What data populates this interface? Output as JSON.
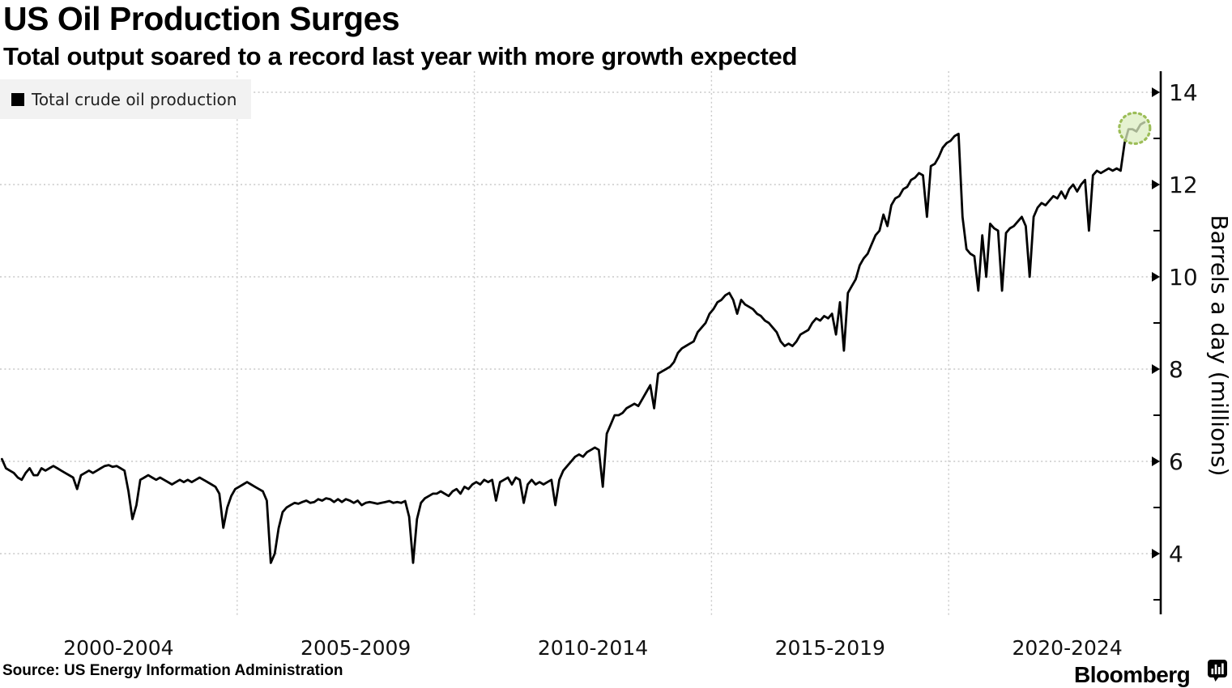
{
  "header": {
    "title": "US Oil Production Surges",
    "subtitle": "Total output soared to a record last year with more growth expected"
  },
  "legend": {
    "label": "Total crude oil production",
    "swatch_color": "#000000"
  },
  "chart_data": {
    "type": "line",
    "title": "US Oil Production Surges",
    "subtitle": "Total output soared to a record last year with more growth expected",
    "ylabel": "Barrels a day (millions)",
    "yticks": [
      14,
      12,
      10,
      8,
      6,
      4
    ],
    "yticks_minor": [
      13,
      11,
      9,
      7,
      5,
      3
    ],
    "ylim": [
      2.6,
      14.45
    ],
    "xlim": [
      2000,
      2025
    ],
    "xtick_labels": [
      "2000-2004",
      "2005-2009",
      "2010-2014",
      "2015-2019",
      "2020-2024"
    ],
    "grid": "dashed",
    "legend_position": "top-left",
    "line_color": "#000000",
    "series": [
      {
        "name": "Total crude oil production",
        "unit": "million barrels a day",
        "frequency": "monthly",
        "start": "2000-01",
        "end": "2024-02",
        "values": [
          6.05,
          5.85,
          5.8,
          5.75,
          5.65,
          5.6,
          5.75,
          5.85,
          5.7,
          5.7,
          5.85,
          5.8,
          5.85,
          5.9,
          5.85,
          5.8,
          5.75,
          5.7,
          5.65,
          5.4,
          5.7,
          5.75,
          5.8,
          5.75,
          5.8,
          5.85,
          5.9,
          5.92,
          5.88,
          5.9,
          5.85,
          5.8,
          5.35,
          4.75,
          5.05,
          5.6,
          5.65,
          5.7,
          5.65,
          5.6,
          5.65,
          5.6,
          5.55,
          5.5,
          5.55,
          5.6,
          5.55,
          5.6,
          5.55,
          5.6,
          5.65,
          5.6,
          5.55,
          5.5,
          5.45,
          5.3,
          4.56,
          5.0,
          5.25,
          5.4,
          5.45,
          5.5,
          5.55,
          5.5,
          5.45,
          5.4,
          5.35,
          5.15,
          3.8,
          4.0,
          4.55,
          4.9,
          5.0,
          5.05,
          5.1,
          5.08,
          5.12,
          5.15,
          5.1,
          5.12,
          5.18,
          5.15,
          5.2,
          5.18,
          5.12,
          5.18,
          5.12,
          5.18,
          5.15,
          5.1,
          5.15,
          5.05,
          5.1,
          5.12,
          5.1,
          5.08,
          5.1,
          5.12,
          5.14,
          5.1,
          5.12,
          5.1,
          5.14,
          4.8,
          3.8,
          4.75,
          5.1,
          5.2,
          5.25,
          5.3,
          5.3,
          5.35,
          5.3,
          5.25,
          5.35,
          5.4,
          5.3,
          5.45,
          5.4,
          5.5,
          5.55,
          5.5,
          5.6,
          5.55,
          5.6,
          5.15,
          5.55,
          5.6,
          5.65,
          5.5,
          5.65,
          5.6,
          5.1,
          5.5,
          5.6,
          5.5,
          5.55,
          5.5,
          5.55,
          5.6,
          5.05,
          5.6,
          5.8,
          5.9,
          6.0,
          6.1,
          6.15,
          6.1,
          6.2,
          6.25,
          6.3,
          6.25,
          5.45,
          6.6,
          6.8,
          7.0,
          7.0,
          7.05,
          7.15,
          7.2,
          7.25,
          7.2,
          7.35,
          7.5,
          7.65,
          7.15,
          7.9,
          7.95,
          8.0,
          8.05,
          8.15,
          8.35,
          8.45,
          8.5,
          8.55,
          8.6,
          8.8,
          8.9,
          9.0,
          9.2,
          9.3,
          9.45,
          9.5,
          9.6,
          9.65,
          9.5,
          9.2,
          9.5,
          9.4,
          9.35,
          9.3,
          9.2,
          9.15,
          9.05,
          9.0,
          8.9,
          8.8,
          8.6,
          8.5,
          8.55,
          8.5,
          8.6,
          8.75,
          8.8,
          8.85,
          9.0,
          9.1,
          9.05,
          9.15,
          9.1,
          9.2,
          8.75,
          9.45,
          8.4,
          9.65,
          9.8,
          9.95,
          10.25,
          10.4,
          10.5,
          10.7,
          10.9,
          11.0,
          11.35,
          11.1,
          11.55,
          11.7,
          11.75,
          11.9,
          11.95,
          12.1,
          12.15,
          12.25,
          12.2,
          11.3,
          12.4,
          12.45,
          12.6,
          12.8,
          12.9,
          12.95,
          13.05,
          13.1,
          11.3,
          10.6,
          10.5,
          10.45,
          9.7,
          10.9,
          10.0,
          11.15,
          11.05,
          11.0,
          9.7,
          10.95,
          11.05,
          11.1,
          11.2,
          11.3,
          11.1,
          10.0,
          11.3,
          11.5,
          11.6,
          11.55,
          11.65,
          11.75,
          11.7,
          11.85,
          11.7,
          11.9,
          12.0,
          11.85,
          12.0,
          12.1,
          11.0,
          12.2,
          12.3,
          12.25,
          12.3,
          12.35,
          12.3,
          12.35,
          12.3,
          12.9,
          13.2,
          13.2,
          13.15,
          13.3,
          13.35
        ]
      }
    ],
    "highlight": {
      "type": "circle",
      "x_year": 2023.92,
      "y_value": 13.22,
      "fill": "#dcedc2",
      "stroke": "#9cbd58"
    }
  },
  "footer": {
    "source": "Source: US Energy Information Administration",
    "brand": "Bloomberg"
  }
}
